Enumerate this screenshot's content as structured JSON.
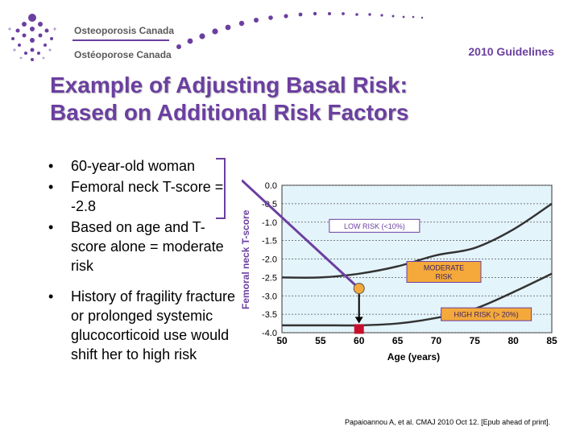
{
  "header": {
    "org_en": "Osteoporosis Canada",
    "org_fr": "Ostéoporose Canada",
    "guidelines": "2010 Guidelines"
  },
  "title": {
    "line1": "Example of Adjusting Basal Risk:",
    "line2": "Based on Additional Risk Factors"
  },
  "bullets": [
    "60-year-old woman",
    "Femoral neck T-score = -2.8",
    "Based on age and T-score alone = moderate risk",
    "History of fragility fracture or prolonged systemic glucocorticoid use would shift her to high risk"
  ],
  "colors": {
    "accent": "#6b3fa0",
    "plot_bg": "#e4f4fb",
    "point_moderate": "#f4a93a",
    "point_high": "#c8102e",
    "label_box": "#f4a93a"
  },
  "chart_data": {
    "type": "line",
    "xlabel": "Age (years)",
    "ylabel": "Femoral neck T-score",
    "xlim": [
      50,
      85
    ],
    "ylim": [
      -4.0,
      0.0
    ],
    "x_ticks": [
      "50",
      "55",
      "60",
      "65",
      "70",
      "75",
      "80",
      "85"
    ],
    "y_ticks": [
      "0.0",
      "-0.5",
      "-1.0",
      "-1.5",
      "-2.0",
      "-2.5",
      "-3.0",
      "-3.5",
      "-4.0"
    ],
    "series": [
      {
        "name": "Low/Moderate risk boundary",
        "x": [
          50,
          55,
          60,
          65,
          70,
          75,
          80,
          85
        ],
        "y": [
          -2.5,
          -2.5,
          -2.4,
          -2.2,
          -1.9,
          -1.7,
          -1.2,
          -0.5
        ]
      },
      {
        "name": "Moderate/High risk boundary",
        "x": [
          50,
          55,
          60,
          65,
          70,
          75,
          80,
          85
        ],
        "y": [
          -3.8,
          -3.8,
          -3.8,
          -3.75,
          -3.6,
          -3.35,
          -2.9,
          -2.4
        ]
      }
    ],
    "zones": [
      {
        "label": "LOW RISK (<10%)",
        "x": 62,
        "y": -1.1
      },
      {
        "label": "MODERATE RISK",
        "x": 71,
        "y": -2.35
      },
      {
        "label": "HIGH RISK (> 20%)",
        "x": 76.5,
        "y": -3.5
      }
    ],
    "points": [
      {
        "name": "basal",
        "x": 60,
        "y": -2.8
      },
      {
        "name": "adjusted",
        "x": 60,
        "y": -3.9
      }
    ],
    "annotation_line": {
      "from_x": 50,
      "from_y": -1.0,
      "to_x": 60,
      "to_y": -2.8
    }
  },
  "citation": "Papaioannou A, et al. CMAJ 2010 Oct 12. [Epub ahead of print]."
}
